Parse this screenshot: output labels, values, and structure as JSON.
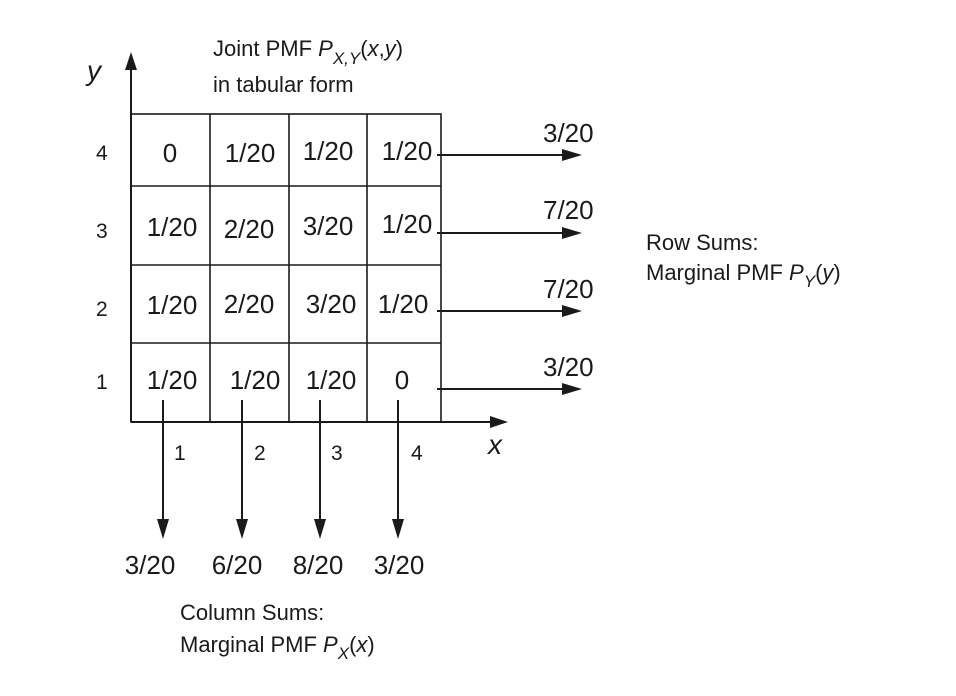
{
  "title": {
    "line1_prefix": "Joint PMF ",
    "line1_P": "P",
    "line1_sub": "X,Y",
    "line1_open": "(",
    "line1_x": "x",
    "line1_comma": ",",
    "line1_y": "y",
    "line1_close": ")",
    "line2": "in tabular form"
  },
  "axes": {
    "x_label": "x",
    "y_label": "y",
    "x_ticks": [
      "1",
      "2",
      "3",
      "4"
    ],
    "y_ticks": [
      "1",
      "2",
      "3",
      "4"
    ]
  },
  "table": {
    "rows": [
      {
        "y": "4",
        "cells": [
          "0",
          "1/20",
          "1/20",
          "1/20"
        ],
        "row_sum": "3/20"
      },
      {
        "y": "3",
        "cells": [
          "1/20",
          "2/20",
          "3/20",
          "1/20"
        ],
        "row_sum": "7/20"
      },
      {
        "y": "2",
        "cells": [
          "1/20",
          "2/20",
          "3/20",
          "1/20"
        ],
        "row_sum": "7/20"
      },
      {
        "y": "1",
        "cells": [
          "1/20",
          "1/20",
          "1/20",
          "0"
        ],
        "row_sum": "3/20"
      }
    ],
    "column_sums": [
      "3/20",
      "6/20",
      "8/20",
      "3/20"
    ]
  },
  "row_sums_note": {
    "line1": "Row Sums:",
    "line2_prefix": "Marginal PMF ",
    "line2_P": "P",
    "line2_sub": "Y",
    "line2_open": "(",
    "line2_var": "y",
    "line2_close": ")"
  },
  "column_sums_note": {
    "line1": "Column Sums:",
    "line2_prefix": "Marginal PMF ",
    "line2_P": "P",
    "line2_sub": "X",
    "line2_open": "(",
    "line2_var": "x",
    "line2_close": ")"
  }
}
